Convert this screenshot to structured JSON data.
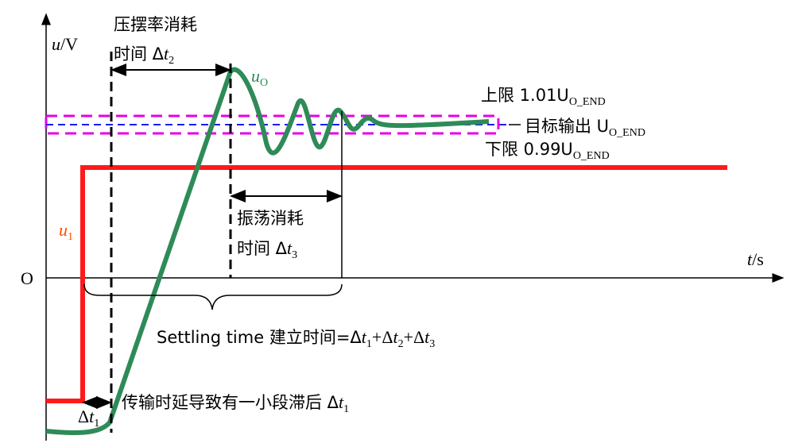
{
  "axes": {
    "y_label": {
      "var": "u",
      "unit": "/V"
    },
    "x_label": {
      "var": "t",
      "unit": "/s"
    },
    "origin": "O"
  },
  "annotations": {
    "slew": {
      "line1": "压摆率消耗",
      "line2": "时间 Δ",
      "var": "t",
      "sub": "2"
    },
    "output": {
      "var": "u",
      "sub": "O"
    },
    "upper": {
      "text": "上限 1.01U",
      "sub": "O_END"
    },
    "target": {
      "text": "目标输出 U",
      "sub": "O_END"
    },
    "lower": {
      "text": "下限 0.99U",
      "sub": "O_END"
    },
    "input": {
      "var": "u",
      "sub": "1"
    },
    "ringing": {
      "line1": "振荡消耗",
      "line2": "时间 Δ",
      "var": "t",
      "sub": "3"
    },
    "settling": {
      "text": "Settling time  建立时间=Δ",
      "v1": "t",
      "s1": "1",
      "plus1": "+Δ",
      "v2": "t",
      "s2": "2",
      "plus2": "+Δ",
      "v3": "t",
      "s3": "3"
    },
    "delay": {
      "text": "传输时延导致有一小段滞后 Δ",
      "var": "t",
      "sub": "1"
    },
    "delta1": {
      "text": "Δ",
      "var": "t",
      "sub": "1"
    }
  }
}
